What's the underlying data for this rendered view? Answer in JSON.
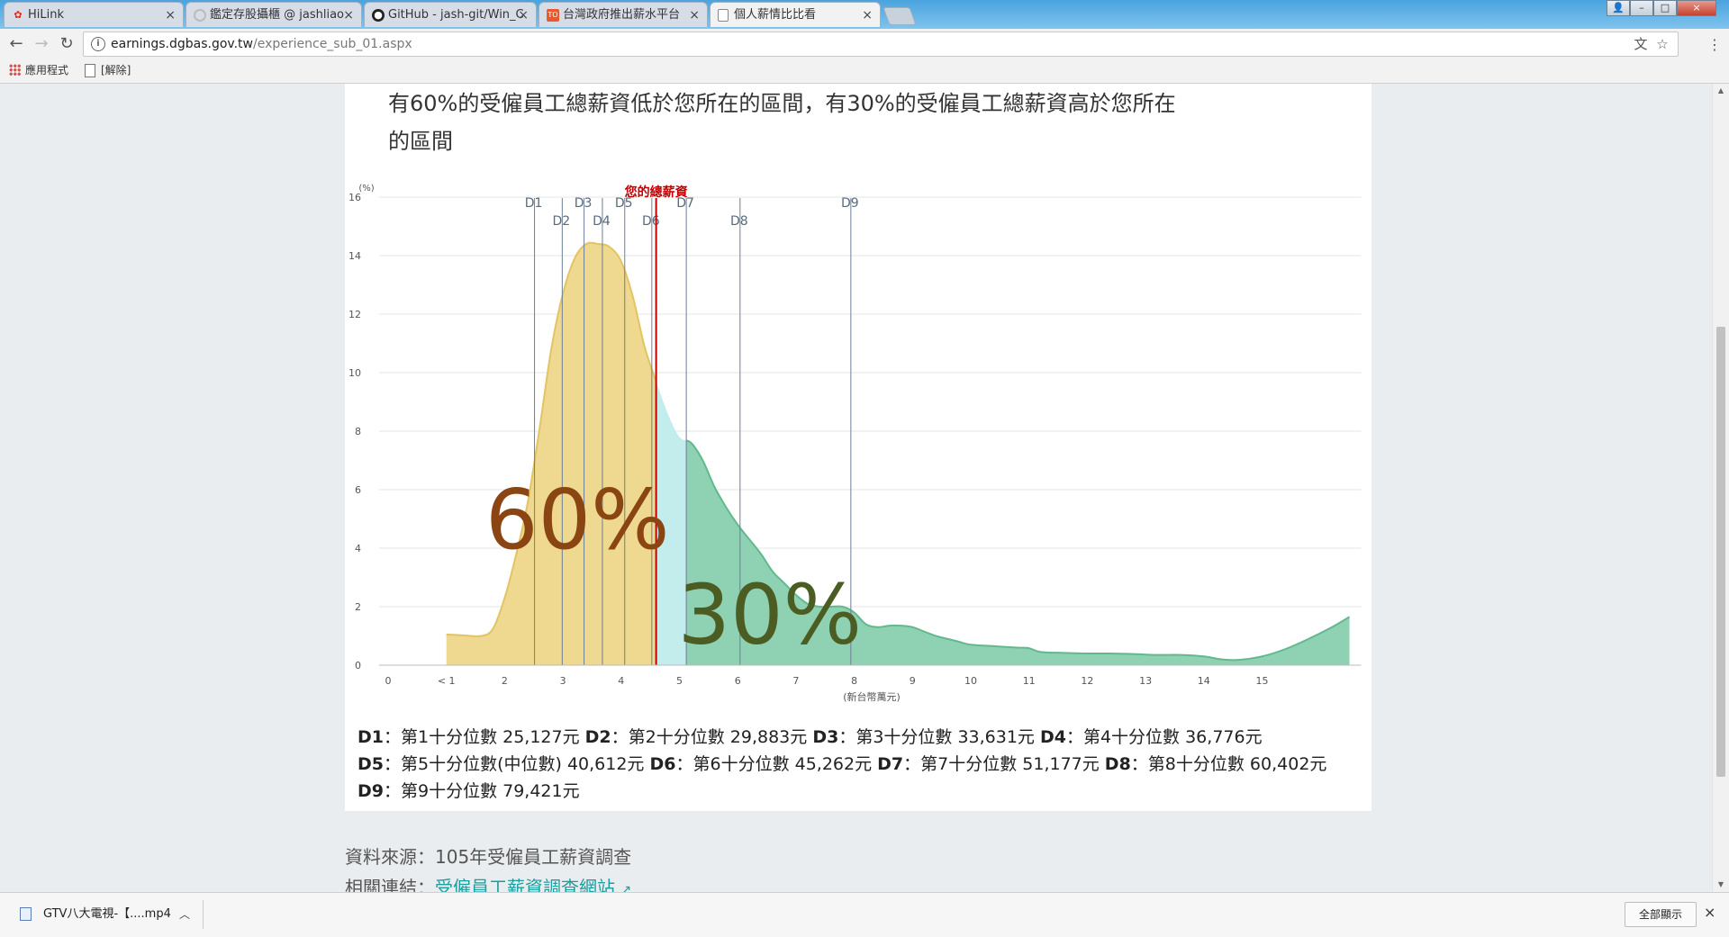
{
  "tabs": [
    {
      "title": "HiLink",
      "icon": "huawei-icon",
      "icon_color": "#e0261d",
      "close": "×"
    },
    {
      "title": "鑑定存股攝櫃 @ jashliao",
      "icon": "loading-spinner-icon",
      "icon_color": "#aaaaaa",
      "close": "×"
    },
    {
      "title": "GitHub - jash-git/Win_C",
      "icon": "github-icon",
      "icon_color": "#222222",
      "close": "×"
    },
    {
      "title": "台灣政府推出薪水平台",
      "icon": "to-site-icon",
      "icon_color": "#e8592b",
      "icon_text": "TO",
      "close": "×"
    },
    {
      "title": "個人薪情比比看",
      "icon": "page-icon",
      "icon_color": "#777777",
      "close": "×",
      "active": true
    }
  ],
  "address": {
    "host": "earnings.dgbas.gov.tw",
    "path": "/experience_sub_01.aspx"
  },
  "bookmarks": [
    {
      "label": "應用程式",
      "icon": "apps-grid-icon"
    },
    {
      "label": "[解除]",
      "icon": "page-icon"
    }
  ],
  "intro": {
    "line1": "有60%的受僱員工總薪資低於您所在的區間，有30%的受僱員工總薪資高於您所在",
    "line2": "的區間"
  },
  "chart_data": {
    "type": "area",
    "ylabel": "(%)",
    "xlabel": "(新台幣萬元)",
    "y_ticks": [
      0,
      2,
      4,
      6,
      8,
      10,
      12,
      14,
      16
    ],
    "x_ticks": [
      {
        "v": 0,
        "label": "0"
      },
      {
        "v": 1,
        "label": "< 1"
      },
      {
        "v": 2,
        "label": "2"
      },
      {
        "v": 3,
        "label": "3"
      },
      {
        "v": 4,
        "label": "4"
      },
      {
        "v": 5,
        "label": "5"
      },
      {
        "v": 6,
        "label": "6"
      },
      {
        "v": 7,
        "label": "7"
      },
      {
        "v": 8,
        "label": "8"
      },
      {
        "v": 9,
        "label": "9"
      },
      {
        "v": 10,
        "label": "10"
      },
      {
        "v": 11,
        "label": "11"
      },
      {
        "v": 12,
        "label": "12"
      },
      {
        "v": 13,
        "label": "13"
      },
      {
        "v": 14,
        "label": "14"
      },
      {
        "v": 15,
        "label": "15"
      }
    ],
    "xlim": [
      0,
      16.7
    ],
    "ylim": [
      0,
      16
    ],
    "curve": [
      [
        1.0,
        1.05
      ],
      [
        1.3,
        1.02
      ],
      [
        1.6,
        1.0
      ],
      [
        1.8,
        1.25
      ],
      [
        2.0,
        2.3
      ],
      [
        2.2,
        3.8
      ],
      [
        2.4,
        5.6
      ],
      [
        2.6,
        8.1
      ],
      [
        2.8,
        10.8
      ],
      [
        3.0,
        12.7
      ],
      [
        3.2,
        13.9
      ],
      [
        3.4,
        14.4
      ],
      [
        3.6,
        14.4
      ],
      [
        3.8,
        14.3
      ],
      [
        4.0,
        13.8
      ],
      [
        4.2,
        12.6
      ],
      [
        4.4,
        10.9
      ],
      [
        4.6,
        9.7
      ],
      [
        4.8,
        8.6
      ],
      [
        5.0,
        7.8
      ],
      [
        5.2,
        7.6
      ],
      [
        5.4,
        7.0
      ],
      [
        5.6,
        6.1
      ],
      [
        5.8,
        5.4
      ],
      [
        6.0,
        4.8
      ],
      [
        6.2,
        4.3
      ],
      [
        6.4,
        3.8
      ],
      [
        6.6,
        3.2
      ],
      [
        6.8,
        2.8
      ],
      [
        7.0,
        2.4
      ],
      [
        7.2,
        2.1
      ],
      [
        7.4,
        2.0
      ],
      [
        7.6,
        2.0
      ],
      [
        7.8,
        2.0
      ],
      [
        8.0,
        1.8
      ],
      [
        8.2,
        1.4
      ],
      [
        8.4,
        1.3
      ],
      [
        8.6,
        1.35
      ],
      [
        8.8,
        1.35
      ],
      [
        9.0,
        1.3
      ],
      [
        9.2,
        1.15
      ],
      [
        9.4,
        1.0
      ],
      [
        9.6,
        0.9
      ],
      [
        9.8,
        0.8
      ],
      [
        10.0,
        0.7
      ],
      [
        10.4,
        0.65
      ],
      [
        10.8,
        0.6
      ],
      [
        11.0,
        0.58
      ],
      [
        11.2,
        0.45
      ],
      [
        11.6,
        0.42
      ],
      [
        12.0,
        0.4
      ],
      [
        12.4,
        0.4
      ],
      [
        12.8,
        0.38
      ],
      [
        13.2,
        0.35
      ],
      [
        13.6,
        0.35
      ],
      [
        14.0,
        0.3
      ],
      [
        14.3,
        0.2
      ],
      [
        14.6,
        0.18
      ],
      [
        15.0,
        0.3
      ],
      [
        15.4,
        0.55
      ],
      [
        15.8,
        0.9
      ],
      [
        16.2,
        1.3
      ],
      [
        16.5,
        1.65
      ]
    ],
    "deciles": [
      {
        "label": "D1",
        "value": 2.5127,
        "row": 0
      },
      {
        "label": "D2",
        "value": 2.9883,
        "row": 1
      },
      {
        "label": "D3",
        "value": 3.3631,
        "row": 0
      },
      {
        "label": "D4",
        "value": 3.6776,
        "row": 1
      },
      {
        "label": "D5",
        "value": 4.0612,
        "row": 0
      },
      {
        "label": "D6",
        "value": 4.5262,
        "row": 1
      },
      {
        "label": "D7",
        "value": 5.1177,
        "row": 0
      },
      {
        "label": "D8",
        "value": 6.0402,
        "row": 1
      },
      {
        "label": "D9",
        "value": 7.9421,
        "row": 0
      }
    ],
    "your_salary": {
      "label": "您的總薪資",
      "value": 4.6
    },
    "below_label": "60%",
    "above_label": "30%",
    "colors": {
      "below": "#efd88f",
      "below_line": "#e3c462",
      "mid": "#c3ecec",
      "above": "#8fd1b3",
      "above_line": "#63b98d",
      "decile": "#6c7f96",
      "marker": "#c40000",
      "below_text": "#8b4513",
      "above_text": "#4b5d23"
    }
  },
  "legend": [
    {
      "key": "D1",
      "text": "：第1十分位數 25,127元"
    },
    {
      "key": "D2",
      "text": "：第2十分位數 29,883元"
    },
    {
      "key": "D3",
      "text": "：第3十分位數 33,631元"
    },
    {
      "key": "D4",
      "text": "：第4十分位數 36,776元"
    },
    {
      "key": "D5",
      "text": "：第5十分位數(中位數) 40,612元"
    },
    {
      "key": "D6",
      "text": "：第6十分位數 45,262元"
    },
    {
      "key": "D7",
      "text": "：第7十分位數 51,177元"
    },
    {
      "key": "D8",
      "text": "：第8十分位數 60,402元"
    },
    {
      "key": "D9",
      "text": "：第9十分位數 79,421元"
    }
  ],
  "source": {
    "prefix": "資料來源：",
    "text": "105年受僱員工薪資調查"
  },
  "related": {
    "prefix": "相關連結：",
    "link": "受僱員工薪資調查網站",
    "icon": "external-link-icon"
  },
  "download": {
    "file": "GTV八大電視-【....mp4",
    "show_all": "全部顯示",
    "close": "×"
  }
}
